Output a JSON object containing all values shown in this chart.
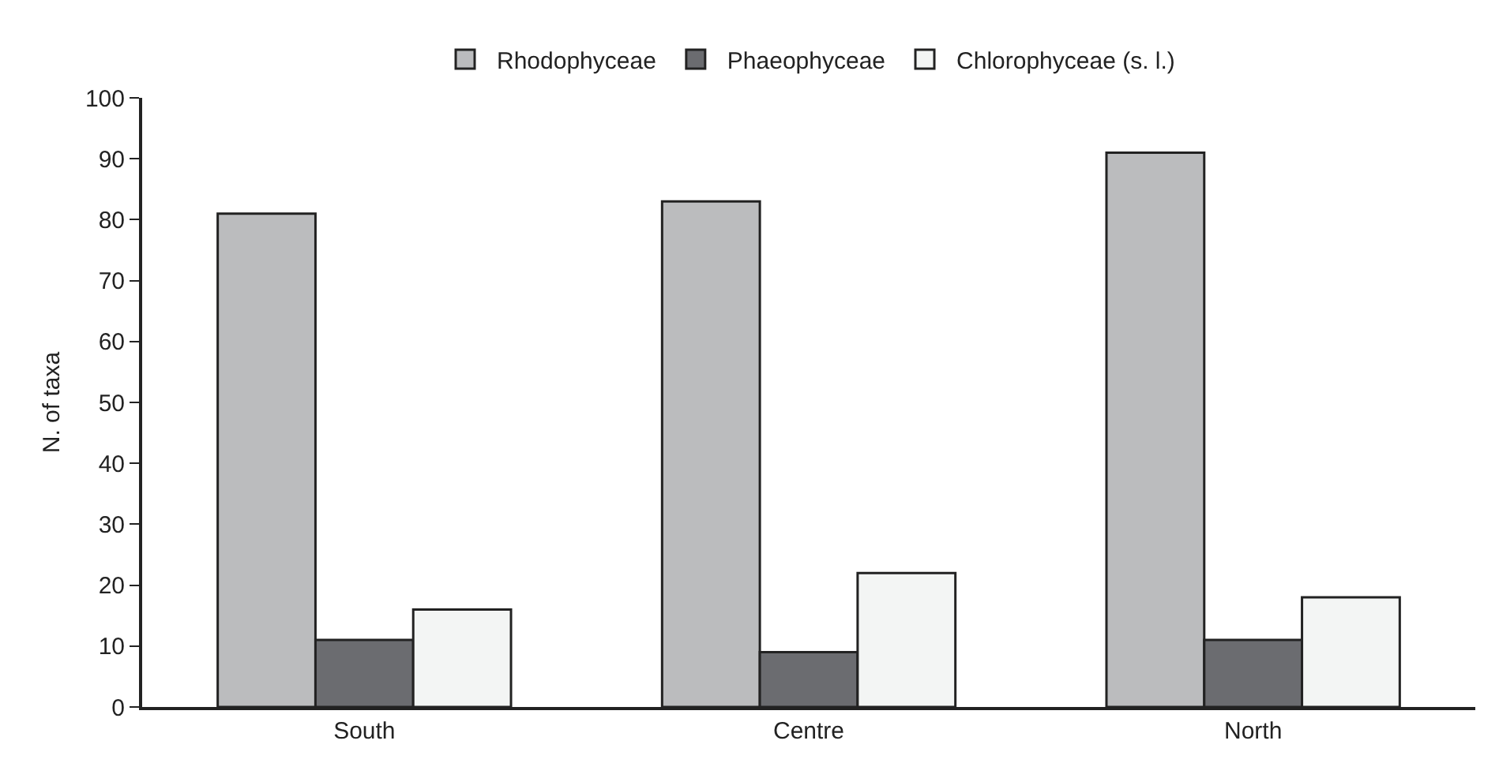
{
  "chart_data": {
    "type": "bar",
    "ylabel": "N. of taxa",
    "categories": [
      "South",
      "Centre",
      "North"
    ],
    "series": [
      {
        "name": "Rhodophyceae",
        "color": "#bbbcbe",
        "values": [
          81,
          83,
          91
        ]
      },
      {
        "name": "Phaeophyceae",
        "color": "#6b6c70",
        "values": [
          11,
          9,
          11
        ]
      },
      {
        "name": "Chlorophyceae (s. l.)",
        "color": "#f3f5f4",
        "values": [
          16,
          22,
          18
        ]
      }
    ],
    "ylim": [
      0,
      100
    ],
    "yticks": [
      0,
      10,
      20,
      30,
      40,
      50,
      60,
      70,
      80,
      90,
      100
    ],
    "grid": false,
    "legend": "top"
  }
}
